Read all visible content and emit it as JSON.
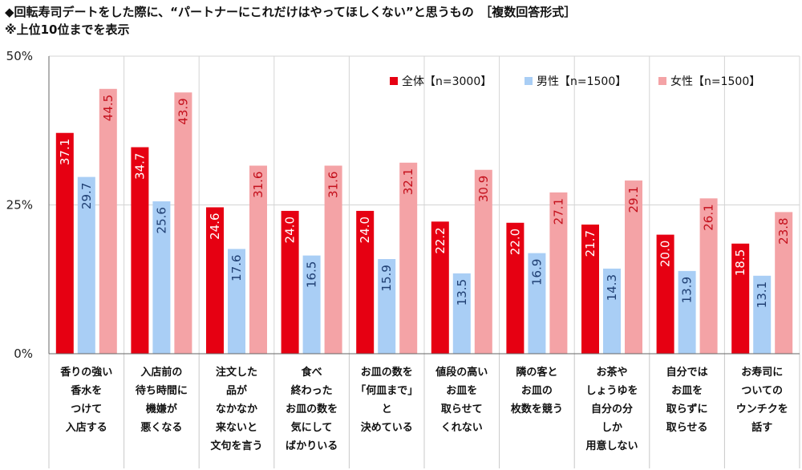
{
  "title": "◆回転寿司デートをした際に、“パートナーにこれだけはやってほしくない”と思うもの　［複数回答形式］",
  "subtitle": "※上位10位までを表示",
  "chart_data": {
    "type": "bar",
    "ylim": [
      0,
      50
    ],
    "yticks": [
      "0%",
      "25%",
      "50%"
    ],
    "ytick_values": [
      0,
      25,
      50
    ],
    "legend_position": "top-right",
    "categories": [
      [
        "香りの強い",
        "香水を",
        "つけて",
        "入店する"
      ],
      [
        "入店前の",
        "待ち時間に",
        "機嫌が",
        "悪くなる"
      ],
      [
        "注文した",
        "品が",
        "なかなか",
        "来ないと",
        "文句を言う"
      ],
      [
        "食べ",
        "終わった",
        "お皿の数を",
        "気にして",
        "ばかりいる"
      ],
      [
        "お皿の数を",
        "「何皿まで」",
        "と",
        "決めている"
      ],
      [
        "値段の高い",
        "お皿を",
        "取らせて",
        "くれない"
      ],
      [
        "隣の客と",
        "お皿の",
        "枚数を競う"
      ],
      [
        "お茶や",
        "しょうゆを",
        "自分の分",
        "しか",
        "用意しない"
      ],
      [
        "自分では",
        "お皿を",
        "取らずに",
        "取らせる"
      ],
      [
        "お寿司に",
        "ついての",
        "ウンチクを",
        "話す"
      ]
    ],
    "series": [
      {
        "name": "全体【n=3000】",
        "color": "#e60012",
        "label_color": "#ffffff",
        "values": [
          37.1,
          34.7,
          24.6,
          24.0,
          24.0,
          22.2,
          22.0,
          21.7,
          20.0,
          18.5
        ]
      },
      {
        "name": "男性【n=1500】",
        "color": "#a9cef5",
        "label_color": "#1f3f73",
        "values": [
          29.7,
          25.6,
          17.6,
          16.5,
          15.9,
          13.5,
          16.9,
          14.3,
          13.9,
          13.1
        ]
      },
      {
        "name": "女性【n=1500】",
        "color": "#f4a3a6",
        "label_color": "#c4101c",
        "values": [
          44.5,
          43.9,
          31.6,
          31.6,
          32.1,
          30.9,
          27.1,
          29.1,
          26.1,
          23.8
        ]
      }
    ]
  }
}
